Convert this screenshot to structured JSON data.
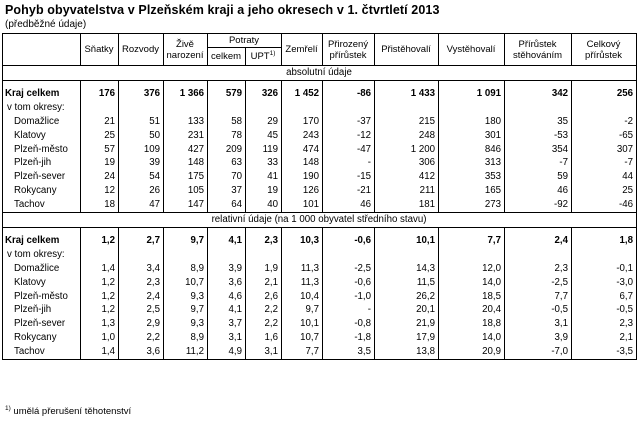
{
  "title": "Pohyb obyvatelstva v Plzeňském kraji a jeho okresech v 1. čtvrtletí 2013",
  "subtitle": "(předběžné údaje)",
  "footnote": {
    "mark": "1)",
    "text": " umělá přerušení těhotenství"
  },
  "headers": {
    "col0": "",
    "snatky": "Sňatky",
    "rozvody": "Rozvody",
    "zive_narozeni_1": "Živě",
    "zive_narozeni_2": "narození",
    "potraty": "Potraty",
    "potraty_celkem": "celkem",
    "potraty_upt": "UPT",
    "potraty_upt_mark": "1)",
    "zemreli": "Zemřelí",
    "prirozeny_1": "Přirozený",
    "prirozeny_2": "přírůstek",
    "pristehovali": "Přistěhovalí",
    "vystehovali": "Vystěhovalí",
    "prirustek_steh_1": "Přírůstek",
    "prirustek_steh_2": "stěhováním",
    "celkovy_1": "Celkový",
    "celkovy_2": "přírůstek"
  },
  "sections": {
    "absolute": "absolutní údaje",
    "relative": "relativní údaje (na 1 000 obyvatel středního stavu)"
  },
  "absolute_rows": [
    {
      "label": "Kraj celkem",
      "values": [
        "176",
        "376",
        "1 366",
        "579",
        "326",
        "1 452",
        "-86",
        "1 433",
        "1 091",
        "342",
        "256"
      ]
    },
    {
      "label": "v tom okresy:",
      "values": [
        "",
        "",
        "",
        "",
        "",
        "",
        "",
        "",
        "",
        "",
        ""
      ]
    },
    {
      "label": "Domažlice",
      "values": [
        "21",
        "51",
        "133",
        "58",
        "29",
        "170",
        "-37",
        "215",
        "180",
        "35",
        "-2"
      ]
    },
    {
      "label": "Klatovy",
      "values": [
        "25",
        "50",
        "231",
        "78",
        "45",
        "243",
        "-12",
        "248",
        "301",
        "-53",
        "-65"
      ]
    },
    {
      "label": "Plzeň-město",
      "values": [
        "57",
        "109",
        "427",
        "209",
        "119",
        "474",
        "-47",
        "1 200",
        "846",
        "354",
        "307"
      ]
    },
    {
      "label": "Plzeň-jih",
      "values": [
        "19",
        "39",
        "148",
        "63",
        "33",
        "148",
        "-",
        "306",
        "313",
        "-7",
        "-7"
      ]
    },
    {
      "label": "Plzeň-sever",
      "values": [
        "24",
        "54",
        "175",
        "70",
        "41",
        "190",
        "-15",
        "412",
        "353",
        "59",
        "44"
      ]
    },
    {
      "label": "Rokycany",
      "values": [
        "12",
        "26",
        "105",
        "37",
        "19",
        "126",
        "-21",
        "211",
        "165",
        "46",
        "25"
      ]
    },
    {
      "label": "Tachov",
      "values": [
        "18",
        "47",
        "147",
        "64",
        "40",
        "101",
        "46",
        "181",
        "273",
        "-92",
        "-46"
      ]
    }
  ],
  "relative_rows": [
    {
      "label": "Kraj celkem",
      "values": [
        "1,2",
        "2,7",
        "9,7",
        "4,1",
        "2,3",
        "10,3",
        "-0,6",
        "10,1",
        "7,7",
        "2,4",
        "1,8"
      ]
    },
    {
      "label": "v tom okresy:",
      "values": [
        "",
        "",
        "",
        "",
        "",
        "",
        "",
        "",
        "",
        "",
        ""
      ]
    },
    {
      "label": "Domažlice",
      "values": [
        "1,4",
        "3,4",
        "8,9",
        "3,9",
        "1,9",
        "11,3",
        "-2,5",
        "14,3",
        "12,0",
        "2,3",
        "-0,1"
      ]
    },
    {
      "label": "Klatovy",
      "values": [
        "1,2",
        "2,3",
        "10,7",
        "3,6",
        "2,1",
        "11,3",
        "-0,6",
        "11,5",
        "14,0",
        "-2,5",
        "-3,0"
      ]
    },
    {
      "label": "Plzeň-město",
      "values": [
        "1,2",
        "2,4",
        "9,3",
        "4,6",
        "2,6",
        "10,4",
        "-1,0",
        "26,2",
        "18,5",
        "7,7",
        "6,7"
      ]
    },
    {
      "label": "Plzeň-jih",
      "values": [
        "1,2",
        "2,5",
        "9,7",
        "4,1",
        "2,2",
        "9,7",
        "-",
        "20,1",
        "20,4",
        "-0,5",
        "-0,5"
      ]
    },
    {
      "label": "Plzeň-sever",
      "values": [
        "1,3",
        "2,9",
        "9,3",
        "3,7",
        "2,2",
        "10,1",
        "-0,8",
        "21,9",
        "18,8",
        "3,1",
        "2,3"
      ]
    },
    {
      "label": "Rokycany",
      "values": [
        "1,0",
        "2,2",
        "8,9",
        "3,1",
        "1,6",
        "10,7",
        "-1,8",
        "17,9",
        "14,0",
        "3,9",
        "2,1"
      ]
    },
    {
      "label": "Tachov",
      "values": [
        "1,4",
        "3,6",
        "11,2",
        "4,9",
        "3,1",
        "7,7",
        "3,5",
        "13,8",
        "20,9",
        "-7,0",
        "-3,5"
      ]
    }
  ]
}
